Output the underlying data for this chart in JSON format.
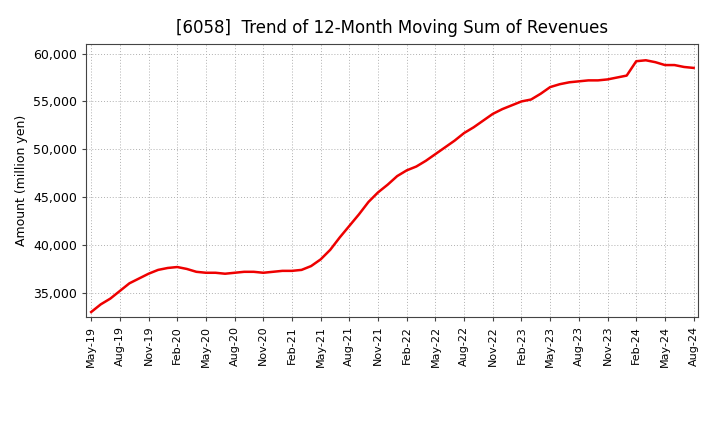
{
  "title": "[6058]  Trend of 12-Month Moving Sum of Revenues",
  "ylabel": "Amount (million yen)",
  "line_color": "#ee0000",
  "background_color": "#ffffff",
  "plot_bg_color": "#ffffff",
  "grid_color": "#b0b0b0",
  "ylim": [
    32500,
    61000
  ],
  "yticks": [
    35000,
    40000,
    45000,
    50000,
    55000,
    60000
  ],
  "values": [
    33000,
    33800,
    34400,
    35200,
    36000,
    36500,
    37000,
    37400,
    37600,
    37700,
    37500,
    37200,
    37100,
    37100,
    37000,
    37100,
    37200,
    37200,
    37100,
    37200,
    37300,
    37300,
    37400,
    37800,
    38500,
    39500,
    40800,
    42000,
    43200,
    44500,
    45500,
    46300,
    47200,
    47800,
    48200,
    48800,
    49500,
    50200,
    50900,
    51700,
    52300,
    53000,
    53700,
    54200,
    54600,
    55000,
    55200,
    55800,
    56500,
    56800,
    57000,
    57100,
    57200,
    57200,
    57300,
    57500,
    57700,
    59200,
    59300,
    59100,
    58800,
    58800,
    58600,
    58500
  ],
  "xtick_labels": [
    "May-19",
    "Aug-19",
    "Nov-19",
    "Feb-20",
    "May-20",
    "Aug-20",
    "Nov-20",
    "Feb-21",
    "May-21",
    "Aug-21",
    "Nov-21",
    "Feb-22",
    "May-22",
    "Aug-22",
    "Nov-22",
    "Feb-23",
    "May-23",
    "Aug-23",
    "Nov-23",
    "Feb-24",
    "May-24",
    "Aug-24"
  ],
  "xtick_positions_idx": [
    0,
    3,
    6,
    9,
    12,
    15,
    18,
    21,
    24,
    27,
    30,
    33,
    36,
    39,
    42,
    45,
    48,
    51,
    54,
    57,
    60,
    63
  ],
  "title_fontsize": 12,
  "ylabel_fontsize": 9,
  "ytick_fontsize": 9,
  "xtick_fontsize": 8,
  "line_width": 1.8
}
